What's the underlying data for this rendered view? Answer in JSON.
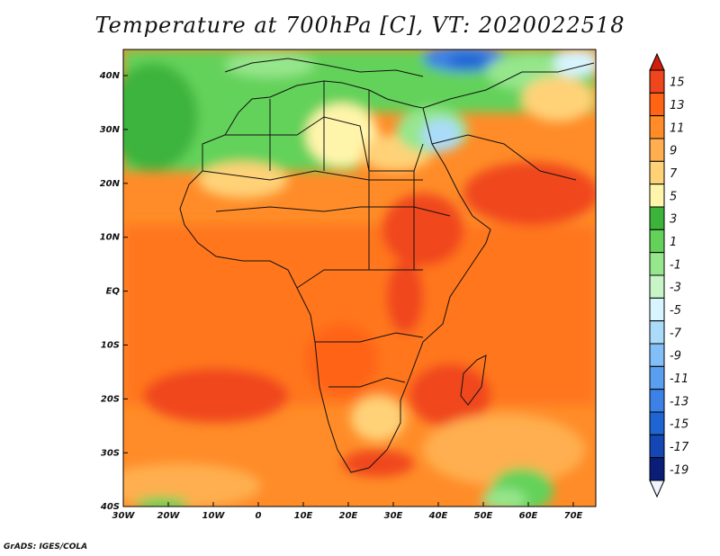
{
  "title": "Temperature at 700hPa [C], VT: 2020022518",
  "credit": "GrADS: IGES/COLA",
  "map": {
    "lat_labels": [
      "40N",
      "30N",
      "20N",
      "10N",
      "EQ",
      "10S",
      "20S",
      "30S",
      "40S"
    ],
    "lon_labels": [
      "30W",
      "20W",
      "10W",
      "0",
      "10E",
      "20E",
      "30E",
      "40E",
      "50E",
      "60E",
      "70E"
    ]
  },
  "colorbar": {
    "labels": [
      "15",
      "13",
      "11",
      "9",
      "7",
      "5",
      "3",
      "1",
      "-1",
      "-3",
      "-5",
      "-7",
      "-9",
      "-11",
      "-13",
      "-15",
      "-17",
      "-19"
    ],
    "colors": [
      "#f0f4ff",
      "#0a1e78",
      "#1446b4",
      "#1e64d2",
      "#3c82e6",
      "#5a9ef0",
      "#82bef8",
      "#aadcfa",
      "#d8f4ff",
      "#c8f5c8",
      "#96e68c",
      "#64d25a",
      "#3cb43c",
      "#fff5aa",
      "#ffd278",
      "#ffaf50",
      "#ff8c28",
      "#ff6414",
      "#f0461e",
      "#d21e0a"
    ]
  }
}
